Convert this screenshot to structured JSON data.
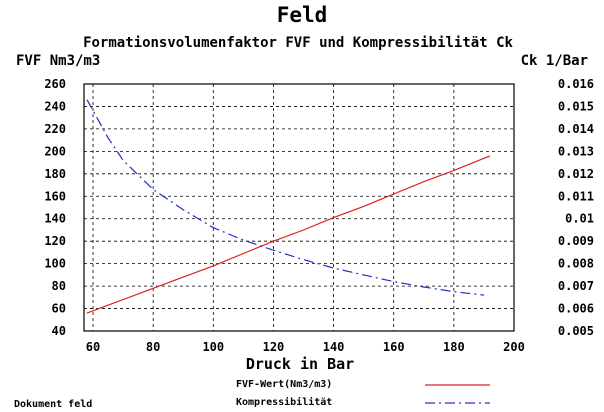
{
  "chart_data": {
    "type": "line",
    "title": "Feld",
    "subtitle": "Formationsvolumenfaktor FVF und Kompressibilität Ck",
    "ylabel_left": "FVF Nm3/m3",
    "ylabel_right": "Ck 1/Bar",
    "xlabel": "Druck in Bar",
    "footer_left": "Dokument feld",
    "xlim": [
      57,
      200
    ],
    "ylim_left": [
      40,
      260
    ],
    "ylim_right": [
      0.005,
      0.016
    ],
    "x_ticks": [
      "60",
      "80",
      "100",
      "120",
      "140",
      "160",
      "180",
      "200"
    ],
    "y_ticks_left": [
      "40",
      "60",
      "80",
      "100",
      "120",
      "140",
      "160",
      "180",
      "200",
      "220",
      "240",
      "260"
    ],
    "y_ticks_right": [
      "0.005",
      "0.006",
      "0.007",
      "0.008",
      "0.009",
      "0.01",
      "0.011",
      "0.012",
      "0.013",
      "0.014",
      "0.015",
      "0.016"
    ],
    "grid": true,
    "legend_position": "bottom-right",
    "series": [
      {
        "name": "FVF-Wert(Nm3/m3)",
        "axis": "left",
        "color": "#e02020",
        "style": "solid",
        "x": [
          58,
          70,
          80,
          90,
          100,
          110,
          120,
          130,
          140,
          150,
          160,
          170,
          180,
          192
        ],
        "values": [
          56,
          68,
          78,
          88,
          98,
          109,
          120,
          130,
          141,
          151,
          162,
          173,
          183,
          196
        ]
      },
      {
        "name": "Kompressibilität",
        "axis": "right",
        "color": "#2030c8",
        "style": "dashed",
        "x": [
          58,
          65,
          70,
          80,
          90,
          100,
          110,
          120,
          130,
          140,
          150,
          160,
          170,
          180,
          190
        ],
        "values": [
          0.0153,
          0.0136,
          0.0126,
          0.0113,
          0.0104,
          0.0096,
          0.00905,
          0.0086,
          0.00818,
          0.0078,
          0.0075,
          0.0072,
          0.00696,
          0.00675,
          0.0066
        ]
      }
    ]
  }
}
